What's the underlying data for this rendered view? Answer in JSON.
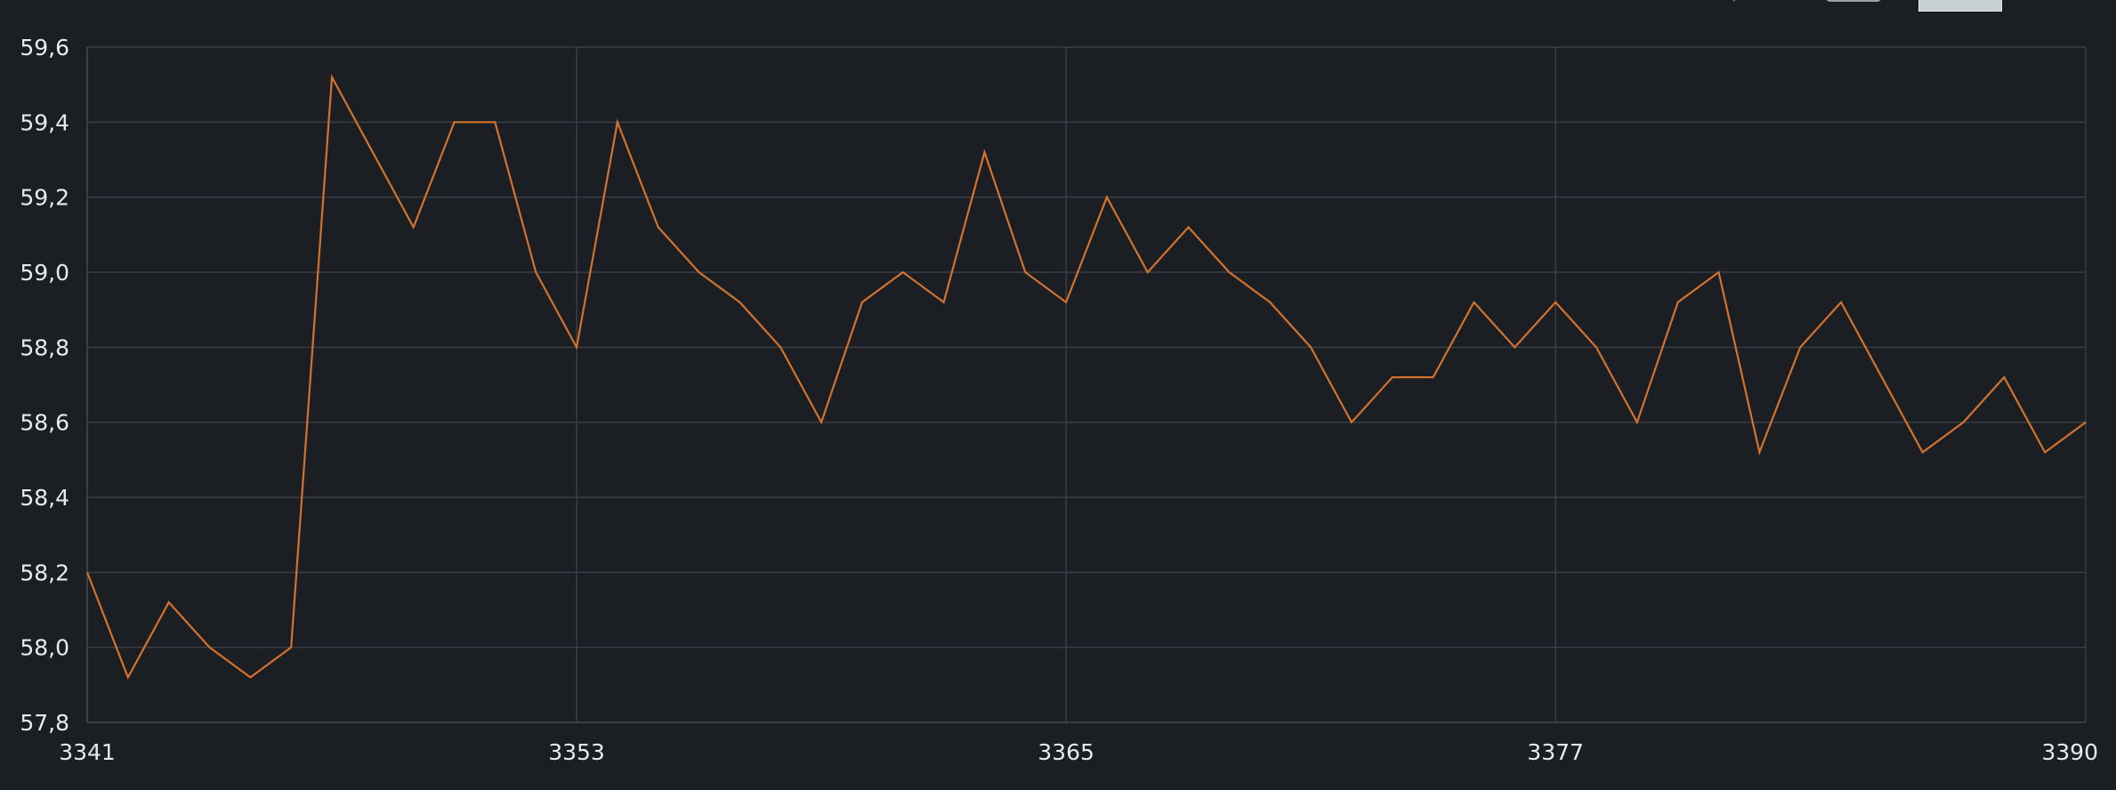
{
  "colors": {
    "background": "#1b1f23",
    "grid": "#3a3f45",
    "axis_text": "#e8eaec",
    "series": "#d1722f"
  },
  "toolbar": {
    "toggle_icon": "toggle-icon",
    "button_icon": "rect-button-icon",
    "mark_icon": "curve-mark-icon"
  },
  "chart_data": {
    "type": "line",
    "title": "",
    "xlabel": "",
    "ylabel": "",
    "xlim": [
      3341,
      3390
    ],
    "ylim": [
      57.8,
      59.6
    ],
    "xticks": [
      3341,
      3353,
      3365,
      3377,
      3390
    ],
    "yticks": [
      "57,8",
      "58,0",
      "58,2",
      "58,4",
      "58,6",
      "58,8",
      "59,0",
      "59,2",
      "59,4",
      "59,6"
    ],
    "grid": true,
    "legend": "none",
    "series": [
      {
        "x": [
          3341,
          3342,
          3343,
          3344,
          3345,
          3346,
          3347,
          3348,
          3349,
          3350,
          3351,
          3352,
          3353,
          3354,
          3355,
          3356,
          3357,
          3358,
          3359,
          3360,
          3361,
          3362,
          3363,
          3364,
          3365,
          3366,
          3367,
          3368,
          3369,
          3370,
          3371,
          3372,
          3373,
          3374,
          3375,
          3376,
          3377,
          3378,
          3379,
          3380,
          3381,
          3382,
          3383,
          3384,
          3385,
          3386,
          3387,
          3388,
          3389,
          3390
        ],
        "values": [
          58.2,
          57.92,
          58.12,
          58.0,
          57.92,
          58.0,
          59.52,
          59.32,
          59.12,
          59.4,
          59.4,
          59.0,
          58.8,
          59.4,
          59.12,
          59.0,
          58.92,
          58.8,
          58.6,
          58.92,
          59.0,
          58.92,
          59.32,
          59.0,
          58.92,
          59.2,
          59.0,
          59.12,
          59.0,
          58.92,
          58.8,
          58.6,
          58.72,
          58.72,
          58.92,
          58.8,
          58.92,
          58.8,
          58.6,
          58.92,
          59.0,
          58.52,
          58.8,
          58.92,
          58.72,
          58.52,
          58.6,
          58.72,
          58.52,
          58.6
        ]
      }
    ]
  }
}
